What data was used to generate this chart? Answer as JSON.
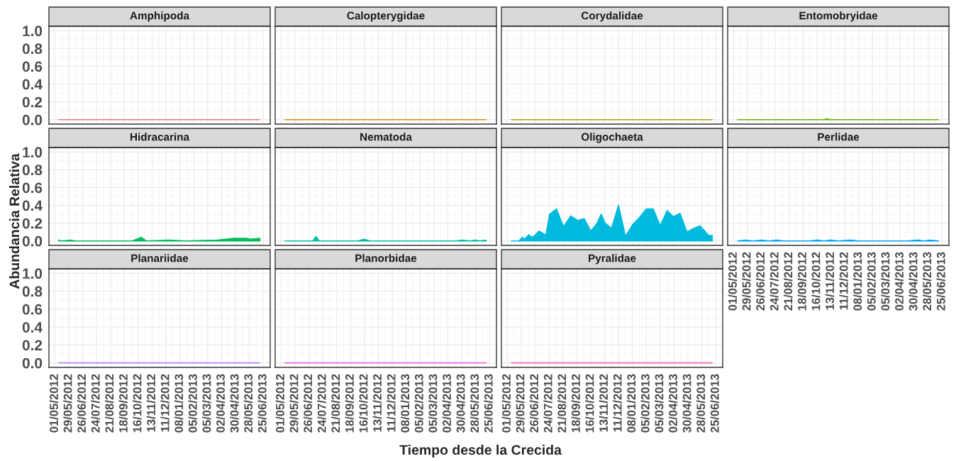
{
  "chart_data": [
    {
      "type": "line",
      "title": "Amphipoda",
      "tick_labels": "y",
      "grid": true,
      "xlim": [
        "2012-04-19",
        "2013-07-09"
      ],
      "ylim": [
        -0.05,
        1.05
      ],
      "xticks": [
        {
          "value": "2012-05-01",
          "label": null
        },
        {
          "value": "2012-05-29",
          "label": null
        },
        {
          "value": "2012-06-26",
          "label": null
        },
        {
          "value": "2012-07-24",
          "label": null
        },
        {
          "value": "2012-08-21",
          "label": null
        },
        {
          "value": "2012-09-18",
          "label": null
        },
        {
          "value": "2012-10-16",
          "label": null
        },
        {
          "value": "2012-11-13",
          "label": null
        },
        {
          "value": "2012-12-11",
          "label": null
        },
        {
          "value": "2013-01-08",
          "label": null
        },
        {
          "value": "2013-02-05",
          "label": null
        },
        {
          "value": "2013-03-05",
          "label": null
        },
        {
          "value": "2013-04-02",
          "label": null
        },
        {
          "value": "2013-04-30",
          "label": null
        },
        {
          "value": "2013-05-28",
          "label": null
        },
        {
          "value": "2013-06-25",
          "label": null
        }
      ],
      "yticks": [
        {
          "value": 0,
          "label": "0.0"
        },
        0.2,
        0.4,
        0.6,
        0.8,
        {
          "value": 1,
          "label": "1.0"
        }
      ],
      "x": [
        "2012-05-09",
        "2013-06-18"
      ],
      "series": [
        {
          "color": "#f8766d",
          "values": [
            0,
            0
          ]
        }
      ]
    },
    {
      "type": "line",
      "title": "Calopterygidae",
      "tick_labels": false,
      "grid": true,
      "xlim": [
        "2012-04-19",
        "2013-07-09"
      ],
      "ylim": [
        -0.05,
        1.05
      ],
      "xticks": [
        {
          "value": "2012-05-01",
          "label": null
        },
        {
          "value": "2012-05-29",
          "label": null
        },
        {
          "value": "2012-06-26",
          "label": null
        },
        {
          "value": "2012-07-24",
          "label": null
        },
        {
          "value": "2012-08-21",
          "label": null
        },
        {
          "value": "2012-09-18",
          "label": null
        },
        {
          "value": "2012-10-16",
          "label": null
        },
        {
          "value": "2012-11-13",
          "label": null
        },
        {
          "value": "2012-12-11",
          "label": null
        },
        {
          "value": "2013-01-08",
          "label": null
        },
        {
          "value": "2013-02-05",
          "label": null
        },
        {
          "value": "2013-03-05",
          "label": null
        },
        {
          "value": "2013-04-02",
          "label": null
        },
        {
          "value": "2013-04-30",
          "label": null
        },
        {
          "value": "2013-05-28",
          "label": null
        },
        {
          "value": "2013-06-25",
          "label": null
        }
      ],
      "yticks": [
        {
          "value": 0,
          "label": null
        },
        {
          "value": 0.2,
          "label": null
        },
        {
          "value": 0.4,
          "label": null
        },
        {
          "value": 0.6,
          "label": null
        },
        {
          "value": 0.8,
          "label": null
        },
        {
          "value": 1,
          "label": null
        }
      ],
      "x": [
        "2012-05-09",
        "2013-06-18"
      ],
      "series": [
        {
          "color": "#db8e00",
          "values": [
            0,
            0
          ]
        }
      ]
    },
    {
      "type": "line",
      "title": "Corydalidae",
      "tick_labels": false,
      "grid": true,
      "xlim": [
        "2012-04-19",
        "2013-07-09"
      ],
      "ylim": [
        -0.05,
        1.05
      ],
      "xticks": [
        {
          "value": "2012-05-01",
          "label": null
        },
        {
          "value": "2012-05-29",
          "label": null
        },
        {
          "value": "2012-06-26",
          "label": null
        },
        {
          "value": "2012-07-24",
          "label": null
        },
        {
          "value": "2012-08-21",
          "label": null
        },
        {
          "value": "2012-09-18",
          "label": null
        },
        {
          "value": "2012-10-16",
          "label": null
        },
        {
          "value": "2012-11-13",
          "label": null
        },
        {
          "value": "2012-12-11",
          "label": null
        },
        {
          "value": "2013-01-08",
          "label": null
        },
        {
          "value": "2013-02-05",
          "label": null
        },
        {
          "value": "2013-03-05",
          "label": null
        },
        {
          "value": "2013-04-02",
          "label": null
        },
        {
          "value": "2013-04-30",
          "label": null
        },
        {
          "value": "2013-05-28",
          "label": null
        },
        {
          "value": "2013-06-25",
          "label": null
        }
      ],
      "yticks": [
        {
          "value": 0,
          "label": null
        },
        {
          "value": 0.2,
          "label": null
        },
        {
          "value": 0.4,
          "label": null
        },
        {
          "value": 0.6,
          "label": null
        },
        {
          "value": 0.8,
          "label": null
        },
        {
          "value": 1,
          "label": null
        }
      ],
      "x": [
        "2012-05-09",
        "2013-06-18"
      ],
      "series": [
        {
          "color": "#aea200",
          "values": [
            0,
            0
          ]
        }
      ]
    },
    {
      "type": "area",
      "title": "Entomobryidae",
      "tick_labels": false,
      "grid": true,
      "xlim": [
        "2012-04-19",
        "2013-07-09"
      ],
      "ylim": [
        -0.05,
        1.05
      ],
      "xticks": [
        {
          "value": "2012-05-01",
          "label": null
        },
        {
          "value": "2012-05-29",
          "label": null
        },
        {
          "value": "2012-06-26",
          "label": null
        },
        {
          "value": "2012-07-24",
          "label": null
        },
        {
          "value": "2012-08-21",
          "label": null
        },
        {
          "value": "2012-09-18",
          "label": null
        },
        {
          "value": "2012-10-16",
          "label": null
        },
        {
          "value": "2012-11-13",
          "label": null
        },
        {
          "value": "2012-12-11",
          "label": null
        },
        {
          "value": "2013-01-08",
          "label": null
        },
        {
          "value": "2013-02-05",
          "label": null
        },
        {
          "value": "2013-03-05",
          "label": null
        },
        {
          "value": "2013-04-02",
          "label": null
        },
        {
          "value": "2013-04-30",
          "label": null
        },
        {
          "value": "2013-05-28",
          "label": null
        },
        {
          "value": "2013-06-25",
          "label": null
        }
      ],
      "yticks": [
        {
          "value": 0,
          "label": null
        },
        {
          "value": 0.2,
          "label": null
        },
        {
          "value": 0.4,
          "label": null
        },
        {
          "value": 0.6,
          "label": null
        },
        {
          "value": 0.8,
          "label": null
        },
        {
          "value": 1,
          "label": null
        }
      ],
      "x": [
        "2012-05-09",
        "2012-10-29",
        "2012-11-05",
        "2012-11-12",
        "2013-06-18"
      ],
      "series": [
        {
          "color": "#64b200",
          "values": [
            0,
            0,
            0.01,
            0,
            0
          ]
        }
      ]
    },
    {
      "type": "area",
      "title": "Hidracarina",
      "ylabel": "Abundancia Relativa",
      "tick_labels": "y",
      "grid": true,
      "xlim": [
        "2012-04-19",
        "2013-07-09"
      ],
      "ylim": [
        -0.05,
        1.05
      ],
      "xticks": [
        {
          "value": "2012-05-01",
          "label": null
        },
        {
          "value": "2012-05-29",
          "label": null
        },
        {
          "value": "2012-06-26",
          "label": null
        },
        {
          "value": "2012-07-24",
          "label": null
        },
        {
          "value": "2012-08-21",
          "label": null
        },
        {
          "value": "2012-09-18",
          "label": null
        },
        {
          "value": "2012-10-16",
          "label": null
        },
        {
          "value": "2012-11-13",
          "label": null
        },
        {
          "value": "2012-12-11",
          "label": null
        },
        {
          "value": "2013-01-08",
          "label": null
        },
        {
          "value": "2013-02-05",
          "label": null
        },
        {
          "value": "2013-03-05",
          "label": null
        },
        {
          "value": "2013-04-02",
          "label": null
        },
        {
          "value": "2013-04-30",
          "label": null
        },
        {
          "value": "2013-05-28",
          "label": null
        },
        {
          "value": "2013-06-25",
          "label": null
        }
      ],
      "yticks": [
        {
          "value": 0,
          "label": "0.0"
        },
        0.2,
        0.4,
        0.6,
        0.8,
        {
          "value": 1,
          "label": "1.0"
        }
      ],
      "x": [
        "2012-05-09",
        "2012-05-14",
        "2012-06-02",
        "2012-06-11",
        "2012-10-04",
        "2012-10-22",
        "2012-11-01",
        "2012-12-19",
        "2013-01-16",
        "2013-03-24",
        "2013-04-27",
        "2013-05-23",
        "2013-05-30",
        "2013-06-18"
      ],
      "series": [
        {
          "color": "#00bd5c",
          "values": [
            0.01,
            0,
            0.01,
            0,
            0,
            0.04,
            0,
            0.01,
            0,
            0.01,
            0.03,
            0.03,
            0.02,
            0.03
          ]
        }
      ]
    },
    {
      "type": "area",
      "title": "Nematoda",
      "tick_labels": false,
      "grid": true,
      "xlim": [
        "2012-04-19",
        "2013-07-09"
      ],
      "ylim": [
        -0.05,
        1.05
      ],
      "xticks": [
        {
          "value": "2012-05-01",
          "label": null
        },
        {
          "value": "2012-05-29",
          "label": null
        },
        {
          "value": "2012-06-26",
          "label": null
        },
        {
          "value": "2012-07-24",
          "label": null
        },
        {
          "value": "2012-08-21",
          "label": null
        },
        {
          "value": "2012-09-18",
          "label": null
        },
        {
          "value": "2012-10-16",
          "label": null
        },
        {
          "value": "2012-11-13",
          "label": null
        },
        {
          "value": "2012-12-11",
          "label": null
        },
        {
          "value": "2013-01-08",
          "label": null
        },
        {
          "value": "2013-02-05",
          "label": null
        },
        {
          "value": "2013-03-05",
          "label": null
        },
        {
          "value": "2013-04-02",
          "label": null
        },
        {
          "value": "2013-04-30",
          "label": null
        },
        {
          "value": "2013-05-28",
          "label": null
        },
        {
          "value": "2013-06-25",
          "label": null
        }
      ],
      "yticks": [
        {
          "value": 0,
          "label": null
        },
        {
          "value": 0.2,
          "label": null
        },
        {
          "value": 0.4,
          "label": null
        },
        {
          "value": 0.6,
          "label": null
        },
        {
          "value": 0.8,
          "label": null
        },
        {
          "value": 1,
          "label": null
        }
      ],
      "x": [
        "2012-05-09",
        "2012-07-04",
        "2012-07-10",
        "2012-07-17",
        "2012-10-03",
        "2012-10-15",
        "2012-10-27",
        "2013-04-18",
        "2013-04-30",
        "2013-05-17",
        "2013-05-27",
        "2013-06-05",
        "2013-06-18"
      ],
      "series": [
        {
          "color": "#00c1a7",
          "values": [
            0,
            0,
            0.05,
            0,
            0,
            0.02,
            0,
            0,
            0.01,
            0,
            0.01,
            0,
            0.01
          ]
        }
      ]
    },
    {
      "type": "area",
      "title": "Oligochaeta",
      "tick_labels": false,
      "grid": true,
      "xlim": [
        "2012-04-19",
        "2013-07-09"
      ],
      "ylim": [
        -0.05,
        1.05
      ],
      "xticks": [
        {
          "value": "2012-05-01",
          "label": null
        },
        {
          "value": "2012-05-29",
          "label": null
        },
        {
          "value": "2012-06-26",
          "label": null
        },
        {
          "value": "2012-07-24",
          "label": null
        },
        {
          "value": "2012-08-21",
          "label": null
        },
        {
          "value": "2012-09-18",
          "label": null
        },
        {
          "value": "2012-10-16",
          "label": null
        },
        {
          "value": "2012-11-13",
          "label": null
        },
        {
          "value": "2012-12-11",
          "label": null
        },
        {
          "value": "2013-01-08",
          "label": null
        },
        {
          "value": "2013-02-05",
          "label": null
        },
        {
          "value": "2013-03-05",
          "label": null
        },
        {
          "value": "2013-04-02",
          "label": null
        },
        {
          "value": "2013-04-30",
          "label": null
        },
        {
          "value": "2013-05-28",
          "label": null
        },
        {
          "value": "2013-06-25",
          "label": null
        }
      ],
      "yticks": [
        {
          "value": 0,
          "label": null
        },
        {
          "value": 0.2,
          "label": null
        },
        {
          "value": 0.4,
          "label": null
        },
        {
          "value": 0.6,
          "label": null
        },
        {
          "value": 0.8,
          "label": null
        },
        {
          "value": 1,
          "label": null
        }
      ],
      "x": [
        "2012-05-09",
        "2012-05-24",
        "2012-05-31",
        "2012-06-05",
        "2012-06-13",
        "2012-06-19",
        "2012-06-25",
        "2012-07-04",
        "2012-07-13",
        "2012-07-18",
        "2012-07-25",
        "2012-08-08",
        "2012-08-22",
        "2012-09-06",
        "2012-09-20",
        "2012-10-03",
        "2012-10-16",
        "2012-10-29",
        "2012-11-06",
        "2012-11-14",
        "2012-11-27",
        "2012-12-11",
        "2012-12-25",
        "2013-01-08",
        "2013-01-22",
        "2013-02-05",
        "2013-02-19",
        "2013-03-05",
        "2013-03-19",
        "2013-04-01",
        "2013-04-14",
        "2013-04-28",
        "2013-05-11",
        "2013-05-24",
        "2013-05-29",
        "2013-06-11",
        "2013-06-18"
      ],
      "series": [
        {
          "color": "#00bade",
          "values": [
            0,
            0,
            0.04,
            0.02,
            0.07,
            0.04,
            0.06,
            0.11,
            0.08,
            0.07,
            0.3,
            0.36,
            0.16,
            0.28,
            0.23,
            0.25,
            0.11,
            0.2,
            0.3,
            0.2,
            0.14,
            0.4,
            0.05,
            0.18,
            0.26,
            0.36,
            0.36,
            0.17,
            0.34,
            0.27,
            0.31,
            0.1,
            0.14,
            0.17,
            0.14,
            0.06,
            0.06
          ]
        }
      ]
    },
    {
      "type": "area",
      "title": "Perlidae",
      "tick_labels": "x",
      "grid": true,
      "xlim": [
        "2012-04-19",
        "2013-07-09"
      ],
      "ylim": [
        -0.05,
        1.05
      ],
      "xticks": [
        {
          "value": "2012-05-01",
          "label": "01/05/2012"
        },
        {
          "value": "2012-05-29",
          "label": "29/05/2012"
        },
        {
          "value": "2012-06-26",
          "label": "26/06/2012"
        },
        {
          "value": "2012-07-24",
          "label": "24/07/2012"
        },
        {
          "value": "2012-08-21",
          "label": "21/08/2012"
        },
        {
          "value": "2012-09-18",
          "label": "18/09/2012"
        },
        {
          "value": "2012-10-16",
          "label": "16/10/2012"
        },
        {
          "value": "2012-11-13",
          "label": "13/11/2012"
        },
        {
          "value": "2012-12-11",
          "label": "11/12/2012"
        },
        {
          "value": "2013-01-08",
          "label": "08/01/2013"
        },
        {
          "value": "2013-02-05",
          "label": "05/02/2013"
        },
        {
          "value": "2013-03-05",
          "label": "05/03/2013"
        },
        {
          "value": "2013-04-02",
          "label": "02/04/2013"
        },
        {
          "value": "2013-04-30",
          "label": "30/04/2013"
        },
        {
          "value": "2013-05-28",
          "label": "28/05/2013"
        },
        {
          "value": "2013-06-25",
          "label": "25/06/2013"
        }
      ],
      "yticks": [
        {
          "value": 0,
          "label": null
        },
        {
          "value": 0.2,
          "label": null
        },
        {
          "value": 0.4,
          "label": null
        },
        {
          "value": 0.6,
          "label": null
        },
        {
          "value": 0.8,
          "label": null
        },
        {
          "value": 1,
          "label": null
        }
      ],
      "x": [
        "2012-05-09",
        "2012-05-25",
        "2012-06-10",
        "2012-06-27",
        "2012-07-12",
        "2012-07-26",
        "2012-08-10",
        "2012-10-01",
        "2012-10-17",
        "2012-10-30",
        "2012-11-13",
        "2012-11-27",
        "2012-12-23",
        "2013-01-08",
        "2013-04-15",
        "2013-05-08",
        "2013-05-20",
        "2013-06-01",
        "2013-06-18"
      ],
      "series": [
        {
          "color": "#00a6ff",
          "values": [
            0,
            0.01,
            0,
            0.01,
            0,
            0.01,
            0,
            0,
            0.01,
            0,
            0.01,
            0,
            0.01,
            0,
            0,
            0.01,
            0,
            0.01,
            0
          ]
        }
      ]
    },
    {
      "type": "line",
      "title": "Planariidae",
      "grid": true,
      "xlim": [
        "2012-04-19",
        "2013-07-09"
      ],
      "ylim": [
        -0.05,
        1.05
      ],
      "xticks": [
        {
          "value": "2012-05-01",
          "label": "01/05/2012"
        },
        {
          "value": "2012-05-29",
          "label": "29/05/2012"
        },
        {
          "value": "2012-06-26",
          "label": "26/06/2012"
        },
        {
          "value": "2012-07-24",
          "label": "24/07/2012"
        },
        {
          "value": "2012-08-21",
          "label": "21/08/2012"
        },
        {
          "value": "2012-09-18",
          "label": "18/09/2012"
        },
        {
          "value": "2012-10-16",
          "label": "16/10/2012"
        },
        {
          "value": "2012-11-13",
          "label": "13/11/2012"
        },
        {
          "value": "2012-12-11",
          "label": "11/12/2012"
        },
        {
          "value": "2013-01-08",
          "label": "08/01/2013"
        },
        {
          "value": "2013-02-05",
          "label": "05/02/2013"
        },
        {
          "value": "2013-03-05",
          "label": "05/03/2013"
        },
        {
          "value": "2013-04-02",
          "label": "02/04/2013"
        },
        {
          "value": "2013-04-30",
          "label": "30/04/2013"
        },
        {
          "value": "2013-05-28",
          "label": "28/05/2013"
        },
        {
          "value": "2013-06-25",
          "label": "25/06/2013"
        }
      ],
      "yticks": [
        {
          "value": 0,
          "label": "0.0"
        },
        0.2,
        0.4,
        0.6,
        0.8,
        {
          "value": 1,
          "label": "1.0"
        }
      ],
      "x": [
        "2012-05-09",
        "2013-06-18"
      ],
      "series": [
        {
          "color": "#b385ff",
          "values": [
            0,
            0
          ]
        }
      ]
    },
    {
      "type": "line",
      "title": "Planorbidae",
      "xlabel": "Tiempo desde la Crecida",
      "tick_labels": "x",
      "grid": true,
      "xlim": [
        "2012-04-19",
        "2013-07-09"
      ],
      "ylim": [
        -0.05,
        1.05
      ],
      "xticks": [
        {
          "value": "2012-05-01",
          "label": "01/05/2012"
        },
        {
          "value": "2012-05-29",
          "label": "29/05/2012"
        },
        {
          "value": "2012-06-26",
          "label": "26/06/2012"
        },
        {
          "value": "2012-07-24",
          "label": "24/07/2012"
        },
        {
          "value": "2012-08-21",
          "label": "21/08/2012"
        },
        {
          "value": "2012-09-18",
          "label": "18/09/2012"
        },
        {
          "value": "2012-10-16",
          "label": "16/10/2012"
        },
        {
          "value": "2012-11-13",
          "label": "13/11/2012"
        },
        {
          "value": "2012-12-11",
          "label": "11/12/2012"
        },
        {
          "value": "2013-01-08",
          "label": "08/01/2013"
        },
        {
          "value": "2013-02-05",
          "label": "05/02/2013"
        },
        {
          "value": "2013-03-05",
          "label": "05/03/2013"
        },
        {
          "value": "2013-04-02",
          "label": "02/04/2013"
        },
        {
          "value": "2013-04-30",
          "label": "30/04/2013"
        },
        {
          "value": "2013-05-28",
          "label": "28/05/2013"
        },
        {
          "value": "2013-06-25",
          "label": "25/06/2013"
        }
      ],
      "yticks": [
        {
          "value": 0,
          "label": null
        },
        {
          "value": 0.2,
          "label": null
        },
        {
          "value": 0.4,
          "label": null
        },
        {
          "value": 0.6,
          "label": null
        },
        {
          "value": 0.8,
          "label": null
        },
        {
          "value": 1,
          "label": null
        }
      ],
      "x": [
        "2012-05-09",
        "2013-06-18"
      ],
      "series": [
        {
          "color": "#ef67eb",
          "values": [
            0,
            0
          ]
        }
      ]
    },
    {
      "type": "line",
      "title": "Pyralidae",
      "tick_labels": "x",
      "grid": true,
      "xlim": [
        "2012-04-19",
        "2013-07-09"
      ],
      "ylim": [
        -0.05,
        1.05
      ],
      "xticks": [
        {
          "value": "2012-05-01",
          "label": "01/05/2012"
        },
        {
          "value": "2012-05-29",
          "label": "29/05/2012"
        },
        {
          "value": "2012-06-26",
          "label": "26/06/2012"
        },
        {
          "value": "2012-07-24",
          "label": "24/07/2012"
        },
        {
          "value": "2012-08-21",
          "label": "21/08/2012"
        },
        {
          "value": "2012-09-18",
          "label": "18/09/2012"
        },
        {
          "value": "2012-10-16",
          "label": "16/10/2012"
        },
        {
          "value": "2012-11-13",
          "label": "13/11/2012"
        },
        {
          "value": "2012-12-11",
          "label": "11/12/2012"
        },
        {
          "value": "2013-01-08",
          "label": "08/01/2013"
        },
        {
          "value": "2013-02-05",
          "label": "05/02/2013"
        },
        {
          "value": "2013-03-05",
          "label": "05/03/2013"
        },
        {
          "value": "2013-04-02",
          "label": "02/04/2013"
        },
        {
          "value": "2013-04-30",
          "label": "30/04/2013"
        },
        {
          "value": "2013-05-28",
          "label": "28/05/2013"
        },
        {
          "value": "2013-06-25",
          "label": "25/06/2013"
        }
      ],
      "yticks": [
        {
          "value": 0,
          "label": null
        },
        {
          "value": 0.2,
          "label": null
        },
        {
          "value": 0.4,
          "label": null
        },
        {
          "value": 0.6,
          "label": null
        },
        {
          "value": 0.8,
          "label": null
        },
        {
          "value": 1,
          "label": null
        }
      ],
      "x": [
        "2012-05-09",
        "2013-06-18"
      ],
      "series": [
        {
          "color": "#ff63b6",
          "values": [
            0,
            0
          ]
        }
      ]
    }
  ]
}
